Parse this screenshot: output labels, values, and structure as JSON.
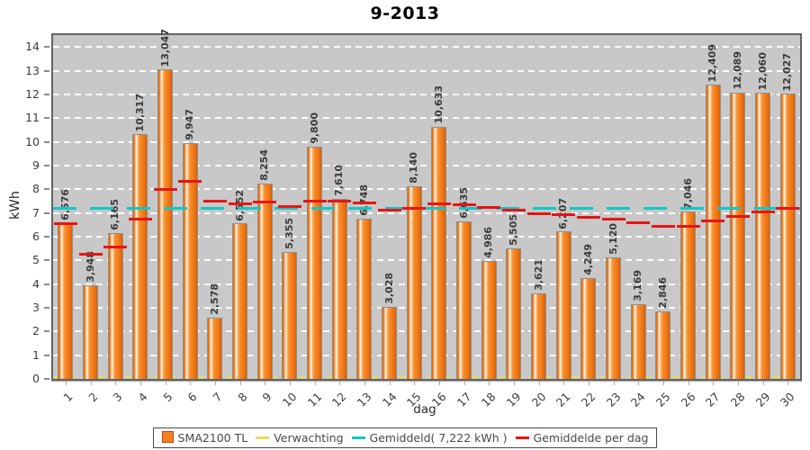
{
  "chart_data": {
    "type": "bar",
    "title": "9-2013",
    "xlabel": "dag",
    "ylabel": "kWh",
    "ylim": [
      0,
      14.5
    ],
    "yticks": [
      0,
      1,
      2,
      3,
      4,
      5,
      6,
      7,
      8,
      9,
      10,
      11,
      12,
      13,
      14
    ],
    "grid": "horizontal-dashed-white",
    "plot_background": "#c8c8c8",
    "categories": [
      "1",
      "2",
      "3",
      "4",
      "5",
      "6",
      "7",
      "8",
      "9",
      "10",
      "11",
      "12",
      "13",
      "14",
      "15",
      "16",
      "17",
      "18",
      "19",
      "20",
      "21",
      "22",
      "23",
      "24",
      "25",
      "26",
      "27",
      "28",
      "29",
      "30"
    ],
    "series": [
      {
        "name": "SMA2100 TL",
        "type": "bar",
        "color": "#f5821f",
        "values": [
          6.576,
          3.948,
          6.165,
          10.317,
          13.047,
          9.947,
          2.578,
          6.552,
          8.254,
          5.355,
          9.8,
          7.61,
          6.748,
          3.028,
          8.14,
          10.633,
          6.635,
          4.986,
          5.505,
          3.621,
          6.207,
          4.249,
          5.12,
          3.169,
          2.846,
          7.046,
          12.409,
          12.089,
          12.06,
          12.027
        ],
        "value_labels": [
          "6,576",
          "3,948",
          "6,165",
          "10,317",
          "13,047",
          "9,947",
          "2,578",
          "6,552",
          "8,254",
          "5,355",
          "9,800",
          "7,610",
          "6,748",
          "3,028",
          "8,140",
          "10,633",
          "6,635",
          "4,986",
          "5,505",
          "3,621",
          "6,207",
          "4,249",
          "5,120",
          "3,169",
          "2,846",
          "7,046",
          "12,409",
          "12,089",
          "12,060",
          "12,027"
        ]
      },
      {
        "name": "Verwachting",
        "type": "hline",
        "color": "#e6de55",
        "value": 0
      },
      {
        "name": "Gemiddeld( 7,222 kWh )",
        "type": "hline",
        "color": "#12c7c7",
        "value": 7.222
      },
      {
        "name": "Gemiddelde per dag",
        "type": "segments",
        "color": "#e81414",
        "values": [
          6.576,
          5.262,
          5.563,
          6.752,
          8.011,
          8.333,
          7.511,
          7.391,
          7.487,
          7.274,
          7.504,
          7.512,
          7.454,
          7.138,
          7.204,
          7.419,
          7.373,
          7.24,
          7.149,
          6.972,
          6.936,
          6.814,
          6.74,
          6.591,
          6.441,
          6.465,
          6.685,
          6.878,
          7.057,
          7.222
        ]
      }
    ],
    "legend": {
      "position": "bottom-center",
      "items": [
        {
          "label": "SMA2100 TL",
          "swatch": "square",
          "color": "#f5821f"
        },
        {
          "label": "Verwachting",
          "swatch": "line",
          "color": "#e6de55"
        },
        {
          "label": "Gemiddeld( 7,222 kWh )",
          "swatch": "line",
          "color": "#12c7c7"
        },
        {
          "label": "Gemiddelde per dag",
          "swatch": "line",
          "color": "#e81414"
        }
      ],
      "average_value_label": "7,222 kWh"
    }
  }
}
